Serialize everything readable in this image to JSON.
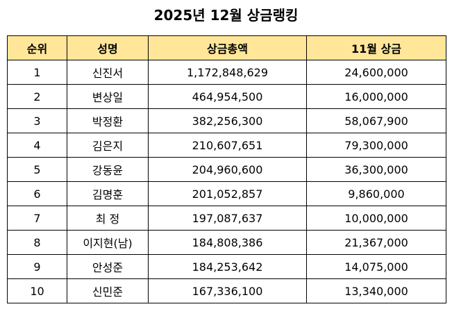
{
  "title": "2025년 12월 상금랭킹",
  "colors": {
    "header_background": "#FFE699",
    "border": "#000000"
  },
  "table": {
    "headers": {
      "rank": "순위",
      "name": "성명",
      "total": "상금총액",
      "month": "11월 상금"
    },
    "rows": [
      {
        "rank": "1",
        "name": "신진서",
        "total": "1,172,848,629",
        "month": "24,600,000"
      },
      {
        "rank": "2",
        "name": "변상일",
        "total": "464,954,500",
        "month": "16,000,000"
      },
      {
        "rank": "3",
        "name": "박정환",
        "total": "382,256,300",
        "month": "58,067,900"
      },
      {
        "rank": "4",
        "name": "김은지",
        "total": "210,607,651",
        "month": "79,300,000"
      },
      {
        "rank": "5",
        "name": "강동윤",
        "total": "204,960,600",
        "month": "36,300,000"
      },
      {
        "rank": "6",
        "name": "김명훈",
        "total": "201,052,857",
        "month": "9,860,000"
      },
      {
        "rank": "7",
        "name": "최 정",
        "total": "197,087,637",
        "month": "10,000,000"
      },
      {
        "rank": "8",
        "name": "이지현(남)",
        "total": "184,808,386",
        "month": "21,367,000"
      },
      {
        "rank": "9",
        "name": "안성준",
        "total": "184,253,642",
        "month": "14,075,000"
      },
      {
        "rank": "10",
        "name": "신민준",
        "total": "167,336,100",
        "month": "13,340,000"
      }
    ]
  }
}
